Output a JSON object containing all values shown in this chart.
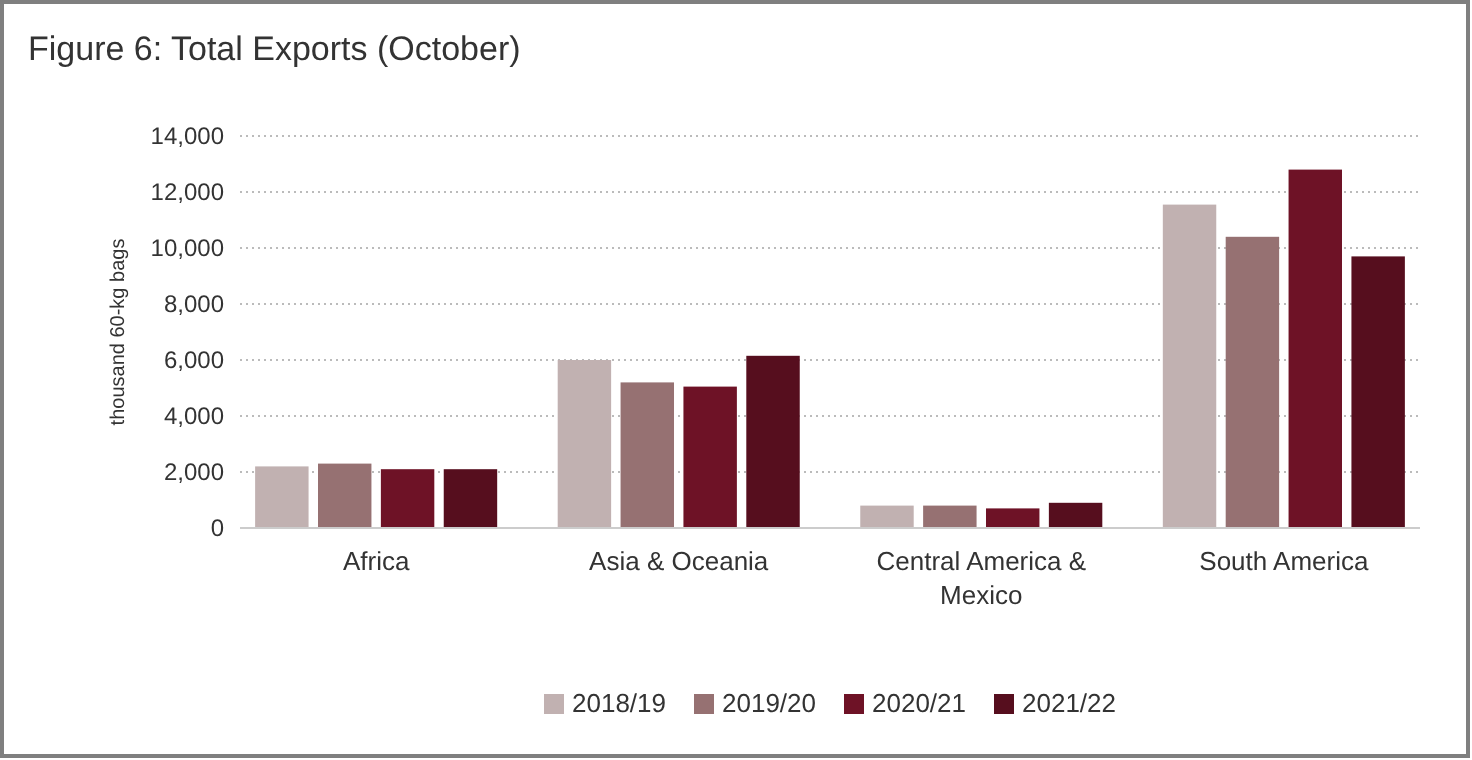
{
  "chart_data": {
    "type": "bar",
    "title": "Figure 6: Total Exports (October)",
    "ylabel": "thousand 60-kg bags",
    "categories": [
      "Africa",
      "Asia & Oceania",
      "Central America & Mexico",
      "South America"
    ],
    "series": [
      {
        "name": "2018/19",
        "color": "#c1b1b1",
        "values": [
          2200,
          6000,
          800,
          11550
        ]
      },
      {
        "name": "2019/20",
        "color": "#967172",
        "values": [
          2300,
          5200,
          800,
          10400
        ]
      },
      {
        "name": "2020/21",
        "color": "#6e1226",
        "values": [
          2100,
          5050,
          700,
          12800
        ]
      },
      {
        "name": "2021/22",
        "color": "#560e1e",
        "values": [
          2100,
          6150,
          900,
          9700
        ]
      }
    ],
    "ylim": [
      0,
      14000
    ],
    "yticks": [
      {
        "value": 0,
        "label": "0"
      },
      {
        "value": 2000,
        "label": "2,000"
      },
      {
        "value": 4000,
        "label": "4,000"
      },
      {
        "value": 6000,
        "label": "6,000"
      },
      {
        "value": 8000,
        "label": "8,000"
      },
      {
        "value": 10000,
        "label": "10,000"
      },
      {
        "value": 12000,
        "label": "12,000"
      },
      {
        "value": 14000,
        "label": "14,000"
      }
    ],
    "grid": "y",
    "legend": "bottom"
  }
}
